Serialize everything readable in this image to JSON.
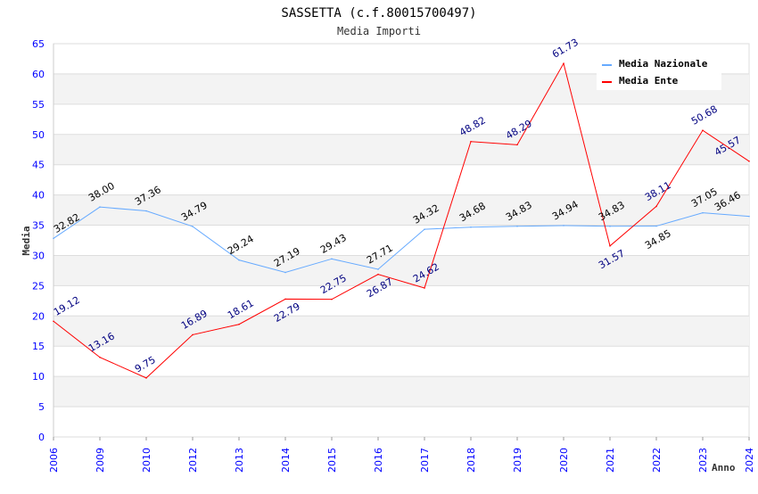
{
  "chart_data": {
    "type": "line",
    "title": "SASSETTA (c.f.80015700497)",
    "subtitle": "Media Importi",
    "xlabel": "Anno",
    "ylabel": "Media",
    "ylim": [
      0,
      65
    ],
    "yticks": [
      0,
      5,
      10,
      15,
      20,
      25,
      30,
      35,
      40,
      45,
      50,
      55,
      60,
      65
    ],
    "categories": [
      "2006",
      "2009",
      "2010",
      "2012",
      "2013",
      "2014",
      "2015",
      "2016",
      "2017",
      "2018",
      "2019",
      "2020",
      "2021",
      "2022",
      "2023",
      "2024"
    ],
    "series": [
      {
        "name": "Media Nazionale",
        "color": "#66aaff",
        "label_color": "#000000",
        "values": [
          32.82,
          38.0,
          37.36,
          34.79,
          29.24,
          27.19,
          29.43,
          27.71,
          34.32,
          34.68,
          34.83,
          34.94,
          34.83,
          34.85,
          37.05,
          36.46
        ]
      },
      {
        "name": "Media Ente",
        "color": "#ff0000",
        "label_color": "#000080",
        "values": [
          19.12,
          13.16,
          9.75,
          16.89,
          18.61,
          22.79,
          22.75,
          26.87,
          24.62,
          48.82,
          48.29,
          61.73,
          31.57,
          38.11,
          50.68,
          45.57
        ]
      }
    ],
    "grid": true,
    "legend": "top-right"
  }
}
